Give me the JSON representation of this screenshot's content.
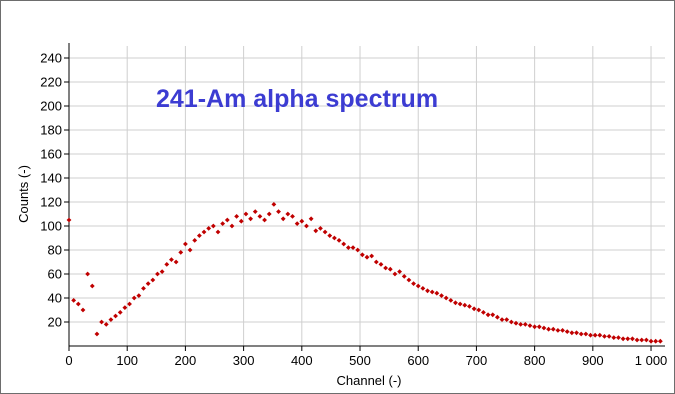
{
  "chart_data": {
    "type": "scatter",
    "title": "241-Am alpha spectrum",
    "xlabel": "Channel (-)",
    "ylabel": "Counts (-)",
    "xlim": [
      0,
      1024
    ],
    "ylim": [
      0,
      250
    ],
    "x_ticks": [
      0,
      100,
      200,
      300,
      400,
      500,
      600,
      700,
      800,
      900,
      1000
    ],
    "x_tick_labels": [
      "0",
      "100",
      "200",
      "300",
      "400",
      "500",
      "600",
      "700",
      "800",
      "900",
      "1 000"
    ],
    "y_ticks": [
      20,
      40,
      60,
      80,
      100,
      120,
      140,
      160,
      180,
      200,
      220,
      240
    ],
    "y_tick_labels": [
      "20",
      "40",
      "60",
      "80",
      "100",
      "120",
      "140",
      "160",
      "180",
      "200",
      "220",
      "240"
    ],
    "grid": true,
    "legend": "none",
    "marker": "diamond",
    "series_color": "#c00000",
    "title_color": "#3c3cd2",
    "series": [
      {
        "x": [
          0,
          8,
          16,
          24,
          32,
          40,
          48,
          56,
          64,
          72,
          80,
          88,
          96,
          104,
          112,
          120,
          128,
          136,
          144,
          152,
          160,
          168,
          176,
          184,
          192,
          200,
          208,
          216,
          224,
          232,
          240,
          248,
          256,
          264,
          272,
          280,
          288,
          296,
          304,
          312,
          320,
          328,
          336,
          344,
          352,
          360,
          368,
          376,
          384,
          392,
          400,
          408,
          416,
          424,
          432,
          440,
          448,
          456,
          464,
          472,
          480,
          488,
          496,
          504,
          512,
          520,
          528,
          536,
          544,
          552,
          560,
          568,
          576,
          584,
          592,
          600,
          608,
          616,
          624,
          632,
          640,
          648,
          656,
          664,
          672,
          680,
          688,
          696,
          704,
          712,
          720,
          728,
          736,
          744,
          752,
          760,
          768,
          776,
          784,
          792,
          800,
          808,
          816,
          824,
          832,
          840,
          848,
          856,
          864,
          872,
          880,
          888,
          896,
          904,
          912,
          920,
          928,
          936,
          944,
          952,
          960,
          968,
          976,
          984,
          992,
          1000,
          1008,
          1016
        ],
        "y": [
          105,
          38,
          35,
          30,
          60,
          50,
          10,
          20,
          18,
          22,
          25,
          28,
          32,
          35,
          40,
          42,
          48,
          52,
          55,
          60,
          62,
          68,
          72,
          70,
          78,
          85,
          80,
          88,
          92,
          95,
          98,
          100,
          95,
          102,
          105,
          100,
          108,
          104,
          110,
          106,
          112,
          108,
          105,
          110,
          118,
          112,
          106,
          110,
          108,
          102,
          104,
          100,
          106,
          96,
          98,
          95,
          92,
          90,
          88,
          85,
          82,
          82,
          80,
          76,
          74,
          75,
          70,
          68,
          65,
          64,
          60,
          62,
          58,
          55,
          52,
          50,
          48,
          46,
          45,
          44,
          42,
          40,
          38,
          36,
          35,
          34,
          33,
          31,
          30,
          28,
          26,
          26,
          24,
          22,
          22,
          20,
          19,
          18,
          18,
          17,
          16,
          16,
          15,
          14,
          14,
          13,
          13,
          12,
          11,
          11,
          10,
          10,
          9,
          9,
          9,
          8,
          8,
          7,
          7,
          6,
          6,
          6,
          5,
          5,
          5,
          4,
          4,
          4
        ]
      }
    ]
  }
}
